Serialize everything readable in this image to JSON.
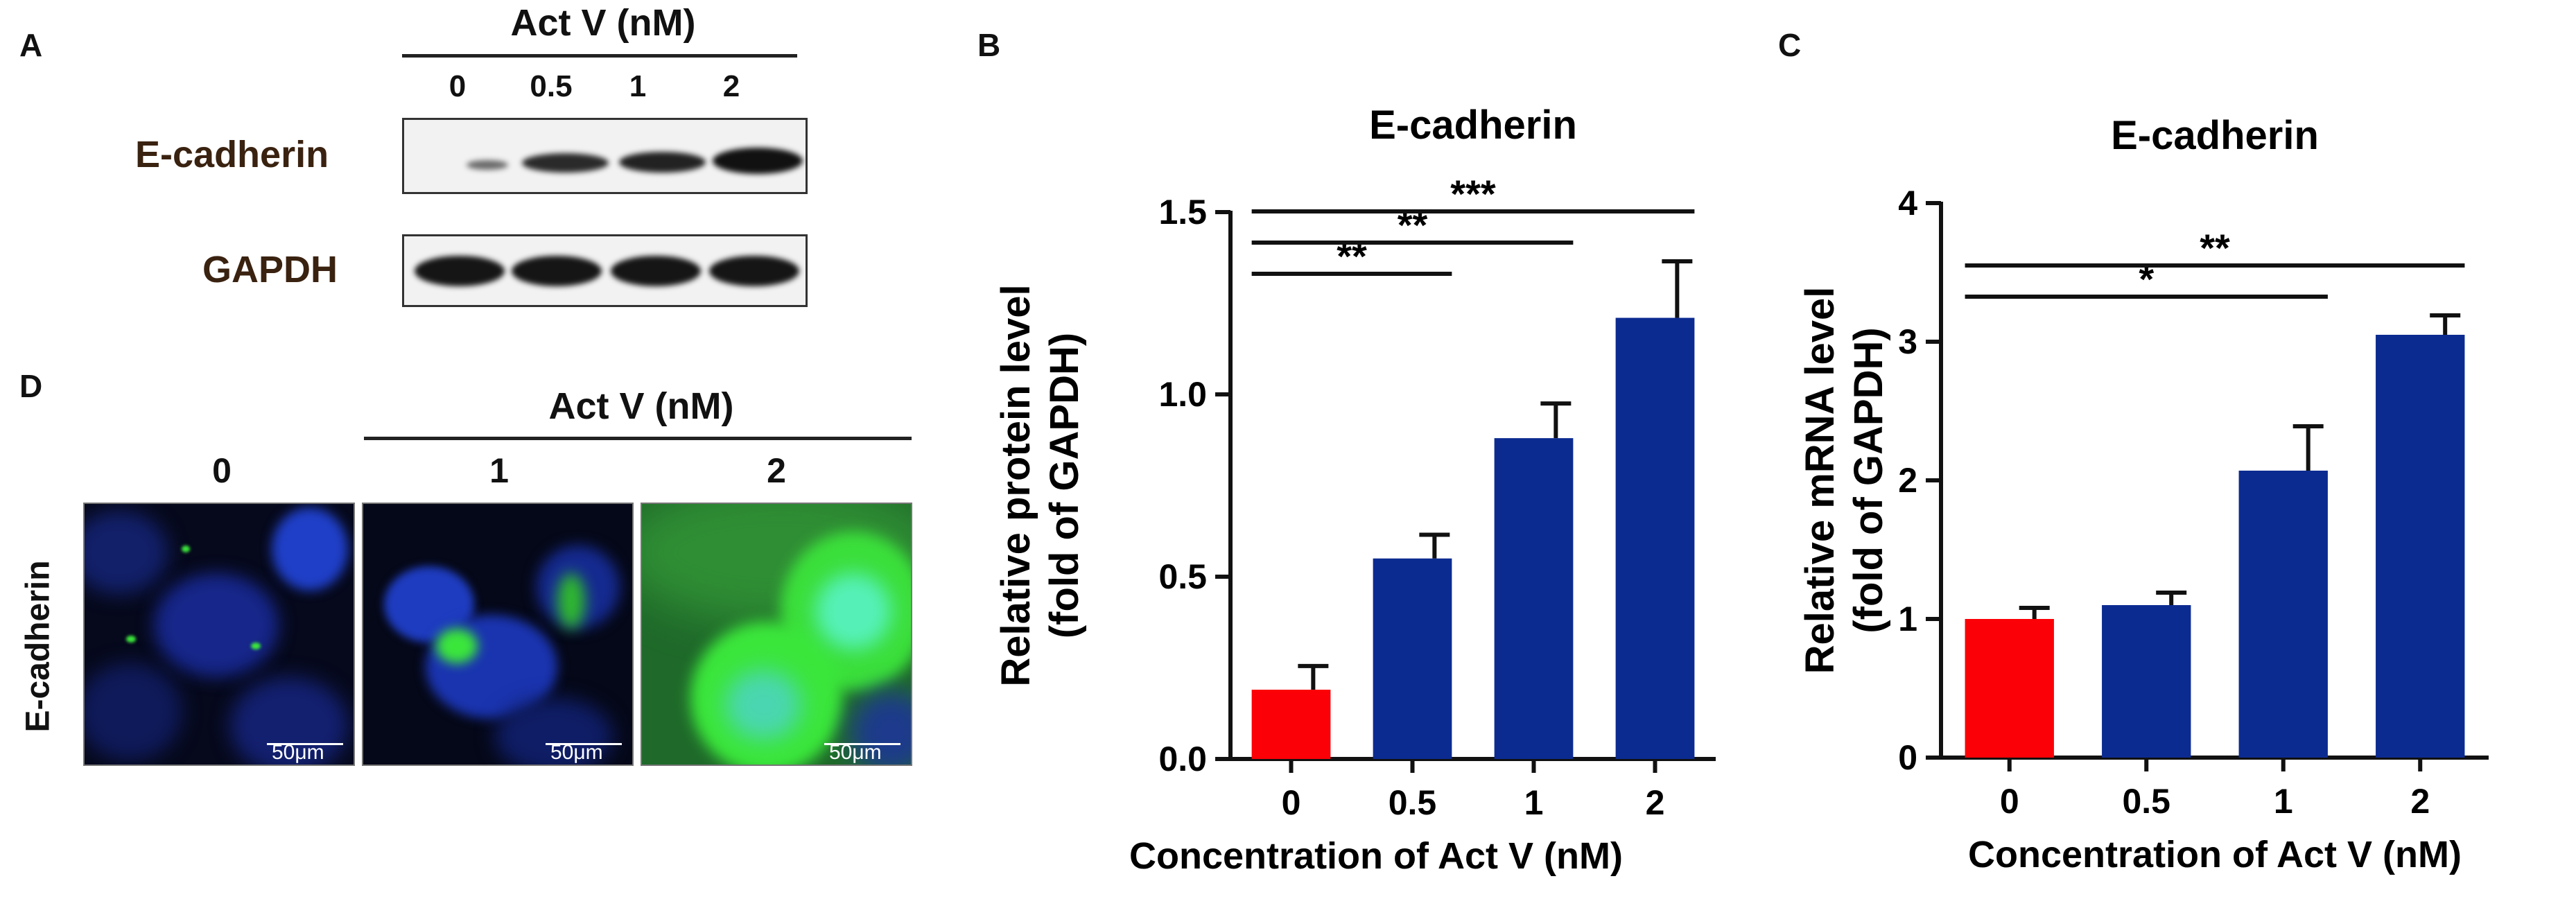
{
  "panels": {
    "A": {
      "letter": "A",
      "treatment_header": "Act V (nM)",
      "lanes": [
        "0",
        "0.5",
        "1",
        "2"
      ],
      "rows": [
        "E-cadherin",
        "GAPDH"
      ]
    },
    "D": {
      "letter": "D",
      "treatment_header": "Act V (nM)",
      "columns": [
        "0",
        "1",
        "2"
      ],
      "row_label": "E-cadherin",
      "scale_bar": "50μm"
    }
  },
  "colors": {
    "control_bar": "#fb0006",
    "treated_bar": "#0c2b91",
    "blot_band": "#1a1a1a",
    "nucleus": "#1f3fc8",
    "ecadherin_stain": "#3be63b"
  },
  "chart_data": [
    {
      "panel": "B",
      "type": "bar",
      "title": "E-cadherin",
      "xlabel": "Concentration of Act V (nM)",
      "ylabel_line1": "Relative protein level",
      "ylabel_line2": "(fold of GAPDH)",
      "categories": [
        "0",
        "0.5",
        "1",
        "2"
      ],
      "values": [
        0.19,
        0.55,
        0.88,
        1.21
      ],
      "errors": [
        0.065,
        0.065,
        0.095,
        0.155
      ],
      "ylim": [
        0,
        1.5
      ],
      "yticks": [
        "0.0",
        "0.5",
        "1.0",
        "1.5"
      ],
      "significance": [
        {
          "from": "0",
          "to": "0.5",
          "label": "**"
        },
        {
          "from": "0",
          "to": "1",
          "label": "**"
        },
        {
          "from": "0",
          "to": "2",
          "label": "***"
        }
      ]
    },
    {
      "panel": "C",
      "type": "bar",
      "title": "E-cadherin",
      "xlabel": "Concentration of Act V (nM)",
      "ylabel_line1": "Relative mRNA  level",
      "ylabel_line2": "(fold of GAPDH)",
      "categories": [
        "0",
        "0.5",
        "1",
        "2"
      ],
      "values": [
        1.0,
        1.1,
        2.07,
        3.05
      ],
      "errors": [
        0.08,
        0.09,
        0.32,
        0.14
      ],
      "ylim": [
        0,
        4
      ],
      "yticks": [
        "0",
        "1",
        "2",
        "3",
        "4"
      ],
      "significance": [
        {
          "from": "0",
          "to": "1",
          "label": "*"
        },
        {
          "from": "0",
          "to": "2",
          "label": "**"
        }
      ]
    }
  ]
}
